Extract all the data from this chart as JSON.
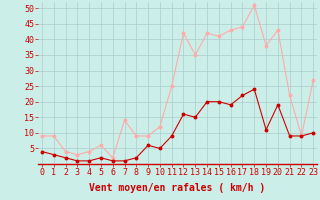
{
  "x": [
    0,
    1,
    2,
    3,
    4,
    5,
    6,
    7,
    8,
    9,
    10,
    11,
    12,
    13,
    14,
    15,
    16,
    17,
    18,
    19,
    20,
    21,
    22,
    23
  ],
  "wind_avg": [
    4,
    3,
    2,
    1,
    1,
    2,
    1,
    1,
    2,
    6,
    5,
    9,
    16,
    15,
    20,
    20,
    19,
    22,
    24,
    11,
    19,
    9,
    9,
    10
  ],
  "wind_gust": [
    9,
    9,
    4,
    3,
    4,
    6,
    2,
    14,
    9,
    9,
    12,
    25,
    42,
    35,
    42,
    41,
    43,
    44,
    51,
    38,
    43,
    22,
    9,
    27
  ],
  "avg_color": "#cc0000",
  "gust_color": "#ffaaaa",
  "bg_color": "#cceee8",
  "grid_color": "#aacccc",
  "xlabel": "Vent moyen/en rafales ( km/h )",
  "ylim": [
    0,
    52
  ],
  "yticks": [
    5,
    10,
    15,
    20,
    25,
    30,
    35,
    40,
    45,
    50
  ],
  "ytick_labels": [
    "5",
    "10",
    "15",
    "20",
    "25",
    "30",
    "35",
    "40",
    "45",
    "50"
  ],
  "xlabel_fontsize": 7,
  "tick_fontsize": 6,
  "label_color": "#cc0000"
}
